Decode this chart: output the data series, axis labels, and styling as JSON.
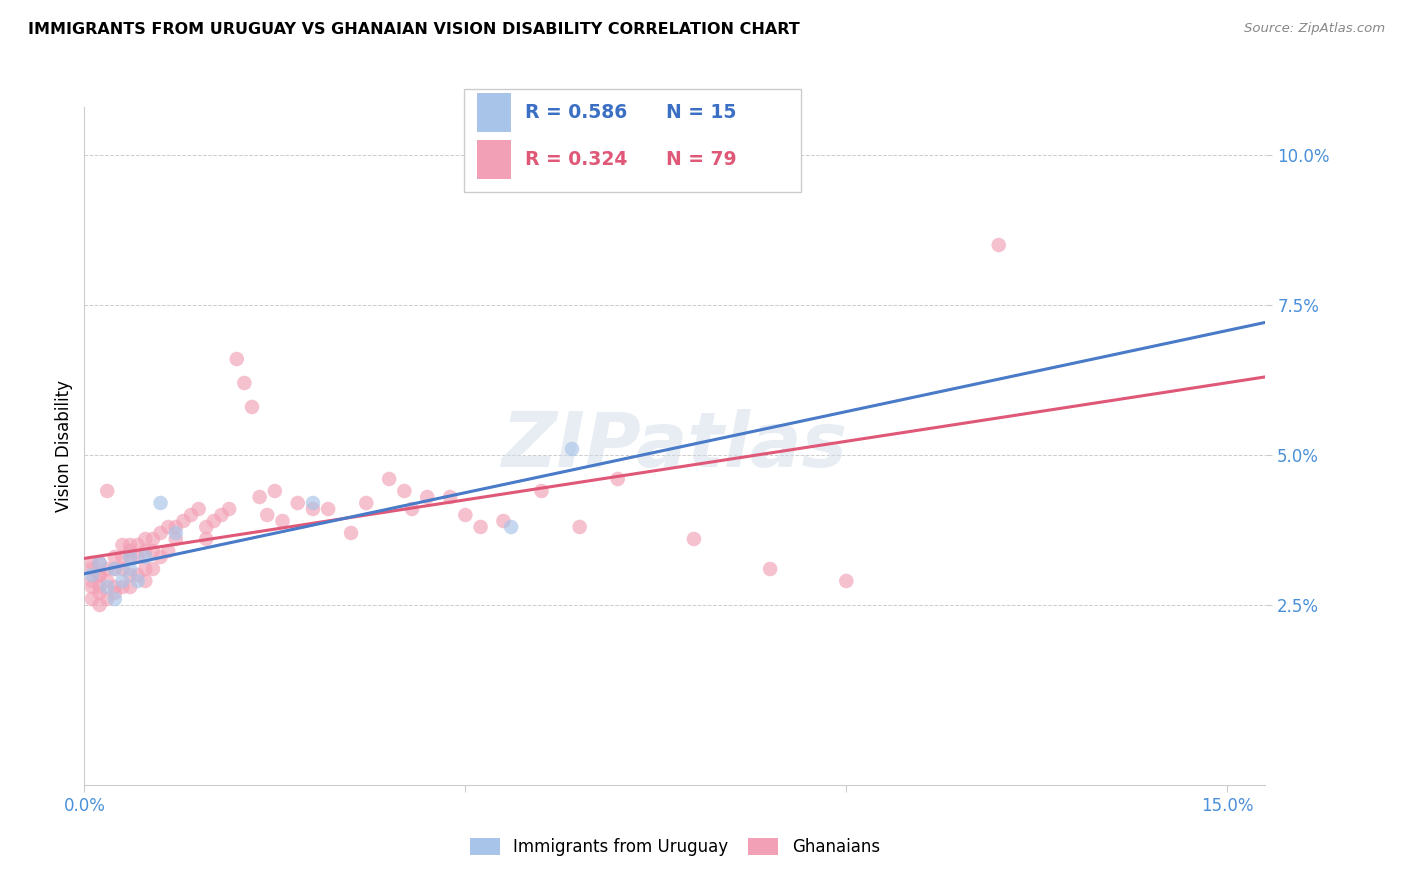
{
  "title": "IMMIGRANTS FROM URUGUAY VS GHANAIAN VISION DISABILITY CORRELATION CHART",
  "source": "Source: ZipAtlas.com",
  "ylabel": "Vision Disability",
  "xlim": [
    0.0,
    0.155
  ],
  "ylim": [
    -0.005,
    0.108
  ],
  "color_uruguay": "#a8c4e8",
  "color_ghana": "#f2a0b5",
  "line_color_uruguay": "#4a7bc8",
  "line_color_ghana": "#e05878",
  "dashed_line_color": "#aabbd0",
  "watermark_text": "ZIPatlas",
  "legend_r1": "R = 0.586",
  "legend_n1": "N = 15",
  "legend_r2": "R = 0.324",
  "legend_n2": "N = 79",
  "legend_label1": "Immigrants from Uruguay",
  "legend_label2": "Ghanaians",
  "tick_color": "#4a90d9",
  "uruguay_x": [
    0.001,
    0.002,
    0.003,
    0.004,
    0.004,
    0.005,
    0.006,
    0.006,
    0.007,
    0.008,
    0.01,
    0.012,
    0.03,
    0.056,
    0.064
  ],
  "uruguay_y": [
    0.03,
    0.032,
    0.028,
    0.031,
    0.026,
    0.029,
    0.031,
    0.033,
    0.029,
    0.033,
    0.042,
    0.037,
    0.042,
    0.038,
    0.051
  ],
  "ghana_x": [
    0.001,
    0.001,
    0.001,
    0.001,
    0.001,
    0.002,
    0.002,
    0.002,
    0.002,
    0.002,
    0.002,
    0.003,
    0.003,
    0.003,
    0.003,
    0.004,
    0.004,
    0.004,
    0.004,
    0.005,
    0.005,
    0.005,
    0.005,
    0.006,
    0.006,
    0.006,
    0.006,
    0.006,
    0.007,
    0.007,
    0.007,
    0.008,
    0.008,
    0.008,
    0.008,
    0.009,
    0.009,
    0.009,
    0.01,
    0.01,
    0.011,
    0.011,
    0.012,
    0.012,
    0.013,
    0.014,
    0.015,
    0.016,
    0.016,
    0.017,
    0.018,
    0.019,
    0.02,
    0.021,
    0.022,
    0.023,
    0.024,
    0.025,
    0.026,
    0.028,
    0.03,
    0.032,
    0.035,
    0.037,
    0.04,
    0.042,
    0.043,
    0.045,
    0.048,
    0.05,
    0.052,
    0.055,
    0.06,
    0.065,
    0.07,
    0.08,
    0.09,
    0.1,
    0.12
  ],
  "ghana_y": [
    0.029,
    0.031,
    0.026,
    0.028,
    0.032,
    0.03,
    0.028,
    0.032,
    0.027,
    0.025,
    0.03,
    0.044,
    0.031,
    0.029,
    0.026,
    0.033,
    0.031,
    0.028,
    0.027,
    0.033,
    0.035,
    0.031,
    0.028,
    0.034,
    0.035,
    0.033,
    0.03,
    0.028,
    0.035,
    0.033,
    0.03,
    0.036,
    0.034,
    0.031,
    0.029,
    0.036,
    0.034,
    0.031,
    0.037,
    0.033,
    0.038,
    0.034,
    0.038,
    0.036,
    0.039,
    0.04,
    0.041,
    0.038,
    0.036,
    0.039,
    0.04,
    0.041,
    0.066,
    0.062,
    0.058,
    0.043,
    0.04,
    0.044,
    0.039,
    0.042,
    0.041,
    0.041,
    0.037,
    0.042,
    0.046,
    0.044,
    0.041,
    0.043,
    0.043,
    0.04,
    0.038,
    0.039,
    0.044,
    0.038,
    0.046,
    0.036,
    0.031,
    0.029,
    0.085
  ]
}
